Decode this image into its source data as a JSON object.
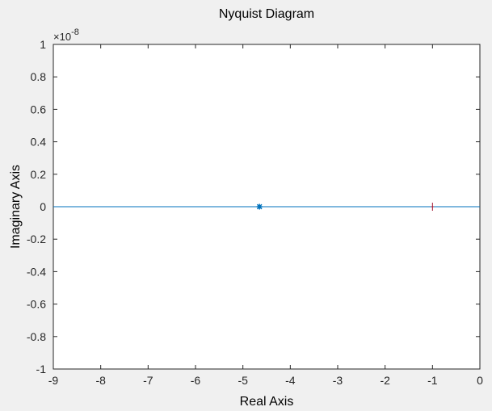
{
  "chart_data": {
    "type": "line",
    "title": "Nyquist Diagram",
    "xlabel": "Real Axis",
    "ylabel": "Imaginary Axis",
    "xlim": [
      -9,
      0
    ],
    "ylim": [
      -1,
      1
    ],
    "y_exponent_label": "×10",
    "y_exponent_power": "-8",
    "x_ticks": [
      -9,
      -8,
      -7,
      -6,
      -5,
      -4,
      -3,
      -2,
      -1,
      0
    ],
    "y_ticks": [
      -1,
      -0.8,
      -0.6,
      -0.4,
      -0.2,
      0,
      0.2,
      0.4,
      0.6,
      0.8,
      1
    ],
    "x_tick_labels": [
      "-9",
      "-8",
      "-7",
      "-6",
      "-5",
      "-4",
      "-3",
      "-2",
      "-1",
      "0"
    ],
    "y_tick_labels": [
      "-1",
      "-0.8",
      "-0.6",
      "-0.4",
      "-0.2",
      "0",
      "0.2",
      "0.4",
      "0.6",
      "0.8",
      "1"
    ],
    "grid": false,
    "series": [
      {
        "x": [
          -9,
          0
        ],
        "y": [
          0,
          0
        ],
        "color": "#0072bd"
      }
    ],
    "markers": [
      {
        "x": -4.65,
        "y": 0,
        "color": "#0072bd",
        "shape": "star"
      },
      {
        "x": -1,
        "y": 0,
        "color": "#a2142f",
        "shape": "plus"
      }
    ]
  }
}
